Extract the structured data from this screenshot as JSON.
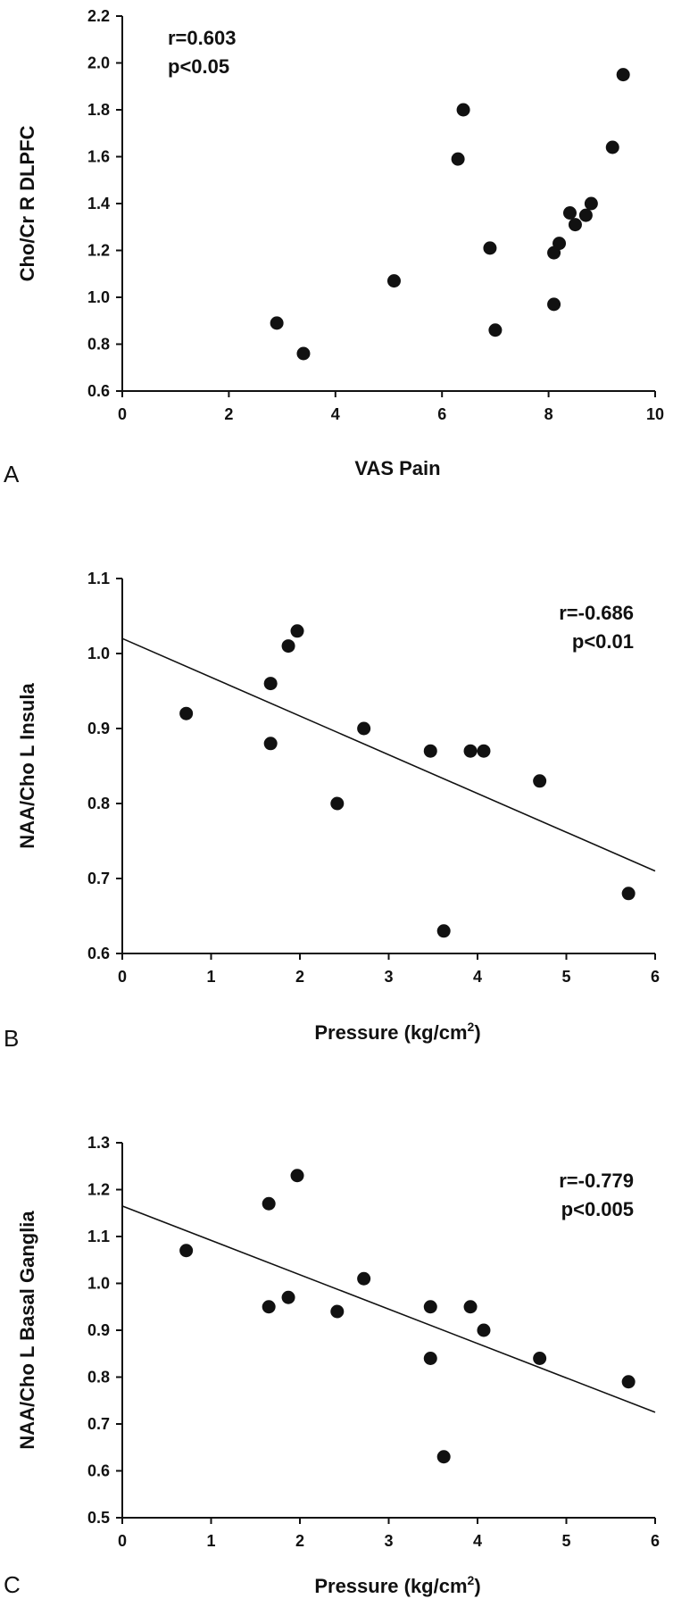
{
  "chart_data": [
    {
      "type": "scatter",
      "panel_label": "A",
      "xlabel": "VAS Pain",
      "ylabel": "Cho/Cr R DLPFC",
      "stats": [
        "r=0.603",
        "p<0.05"
      ],
      "xlim": [
        0,
        10
      ],
      "ylim": [
        0.6,
        2.2
      ],
      "xticks": [
        0,
        2,
        4,
        6,
        8,
        10
      ],
      "yticks": [
        0.6,
        0.8,
        1.0,
        1.2,
        1.4,
        1.6,
        1.8,
        2.0,
        2.2
      ],
      "xtick_labels": [
        "0",
        "2",
        "4",
        "6",
        "8",
        "10"
      ],
      "ytick_labels": [
        "0.6",
        "0.8",
        "1.0",
        "1.2",
        "1.4",
        "1.6",
        "1.8",
        "2.0",
        "2.2"
      ],
      "points": [
        {
          "x": 2.9,
          "y": 0.89
        },
        {
          "x": 3.4,
          "y": 0.76
        },
        {
          "x": 5.1,
          "y": 1.07
        },
        {
          "x": 6.3,
          "y": 1.59
        },
        {
          "x": 6.4,
          "y": 1.8
        },
        {
          "x": 6.9,
          "y": 1.21
        },
        {
          "x": 7.0,
          "y": 0.86
        },
        {
          "x": 8.1,
          "y": 0.97
        },
        {
          "x": 8.1,
          "y": 1.19
        },
        {
          "x": 8.2,
          "y": 1.23
        },
        {
          "x": 8.4,
          "y": 1.36
        },
        {
          "x": 8.5,
          "y": 1.31
        },
        {
          "x": 8.7,
          "y": 1.35
        },
        {
          "x": 8.8,
          "y": 1.4
        },
        {
          "x": 9.2,
          "y": 1.64
        },
        {
          "x": 9.4,
          "y": 1.95
        }
      ],
      "grid": false
    },
    {
      "type": "scatter",
      "panel_label": "B",
      "xlabel": "Pressure (kg/cm",
      "xlabel_sup": "2",
      "xlabel_end": ")",
      "ylabel": "NAA/Cho L Insula",
      "stats": [
        "r=-0.686",
        "p<0.01"
      ],
      "xlim": [
        0,
        6
      ],
      "ylim": [
        0.6,
        1.1
      ],
      "xticks": [
        0,
        1,
        2,
        3,
        4,
        5,
        6
      ],
      "yticks": [
        0.6,
        0.7,
        0.8,
        0.9,
        1.0,
        1.1
      ],
      "xtick_labels": [
        "0",
        "1",
        "2",
        "3",
        "4",
        "5",
        "6"
      ],
      "ytick_labels": [
        "0.6",
        "0.7",
        "0.8",
        "0.9",
        "1.0",
        "1.1"
      ],
      "points": [
        {
          "x": 0.72,
          "y": 0.92
        },
        {
          "x": 1.67,
          "y": 0.96
        },
        {
          "x": 1.67,
          "y": 0.88
        },
        {
          "x": 1.87,
          "y": 1.01
        },
        {
          "x": 1.97,
          "y": 1.03
        },
        {
          "x": 2.42,
          "y": 0.8
        },
        {
          "x": 2.72,
          "y": 0.9
        },
        {
          "x": 3.47,
          "y": 0.87
        },
        {
          "x": 3.62,
          "y": 0.63
        },
        {
          "x": 3.92,
          "y": 0.87
        },
        {
          "x": 4.07,
          "y": 0.87
        },
        {
          "x": 4.7,
          "y": 0.83
        },
        {
          "x": 5.7,
          "y": 0.68
        }
      ],
      "trendline": {
        "x": [
          0,
          6
        ],
        "y": [
          1.02,
          0.71
        ]
      },
      "grid": false
    },
    {
      "type": "scatter",
      "panel_label": "C",
      "xlabel": "Pressure (kg/cm",
      "xlabel_sup": "2",
      "xlabel_end": ")",
      "ylabel": "NAA/Cho L Basal Ganglia",
      "stats": [
        "r=-0.779",
        "p<0.005"
      ],
      "xlim": [
        0,
        6
      ],
      "ylim": [
        0.5,
        1.3
      ],
      "xticks": [
        0,
        1,
        2,
        3,
        4,
        5,
        6
      ],
      "yticks": [
        0.5,
        0.6,
        0.7,
        0.8,
        0.9,
        1.0,
        1.1,
        1.2,
        1.3
      ],
      "xtick_labels": [
        "0",
        "1",
        "2",
        "3",
        "4",
        "5",
        "6"
      ],
      "ytick_labels": [
        "0.5",
        "0.6",
        "0.7",
        "0.8",
        "0.9",
        "1.0",
        "1.1",
        "1.2",
        "1.3"
      ],
      "points": [
        {
          "x": 0.72,
          "y": 1.07
        },
        {
          "x": 1.65,
          "y": 1.17
        },
        {
          "x": 1.65,
          "y": 0.95
        },
        {
          "x": 1.87,
          "y": 0.97
        },
        {
          "x": 1.97,
          "y": 1.23
        },
        {
          "x": 2.42,
          "y": 0.94
        },
        {
          "x": 2.72,
          "y": 1.01
        },
        {
          "x": 3.47,
          "y": 0.95
        },
        {
          "x": 3.47,
          "y": 0.84
        },
        {
          "x": 3.62,
          "y": 0.63
        },
        {
          "x": 3.92,
          "y": 0.95
        },
        {
          "x": 4.07,
          "y": 0.9
        },
        {
          "x": 4.7,
          "y": 0.84
        },
        {
          "x": 5.7,
          "y": 0.79
        }
      ],
      "trendline": {
        "x": [
          0,
          6
        ],
        "y": [
          1.165,
          0.725
        ]
      },
      "grid": false
    }
  ]
}
